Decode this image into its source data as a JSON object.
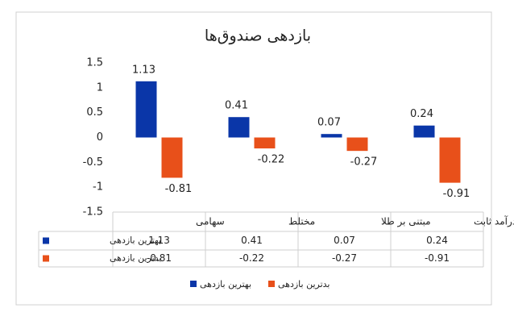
{
  "chart_data": {
    "type": "bar",
    "title": "بازدهی صندوق‌ها",
    "categories": [
      "سهامی",
      "مختلط",
      "مبتنی بر طلا",
      "درآمد ثابت"
    ],
    "series": [
      {
        "name": "بهترین بازدهی",
        "color": "#0a36a8",
        "values": [
          1.13,
          0.41,
          0.07,
          0.24
        ]
      },
      {
        "name": "بدترین بازدهی",
        "color": "#e8501a",
        "values": [
          -0.81,
          -0.22,
          -0.27,
          -0.91
        ]
      }
    ],
    "ylim": [
      -1.5,
      1.5
    ],
    "yticks": [
      1.5,
      1,
      0.5,
      0,
      -0.5,
      -1,
      -1.5
    ],
    "grid": false
  }
}
